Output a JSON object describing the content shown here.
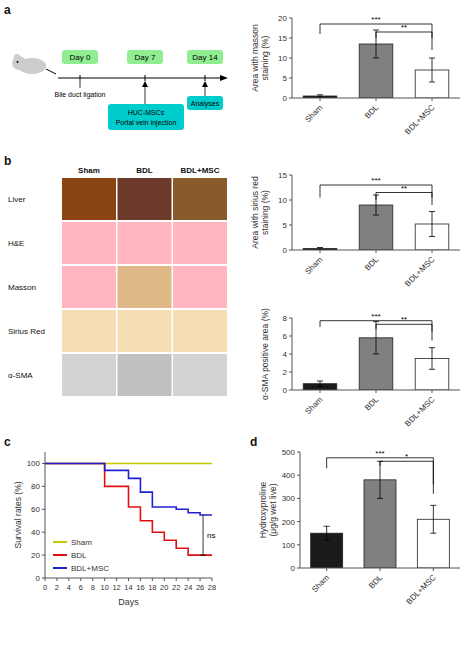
{
  "chart_data": [
    {
      "type": "timeline",
      "title": "a",
      "labels": [
        "Day 0",
        "Day 7",
        "Day 14"
      ],
      "annotations": [
        "Bile duct ligation",
        "HUC-MSCs\nPortal vein injection",
        "Analyses"
      ]
    },
    {
      "type": "bar",
      "categories": [
        "Sham",
        "BDL",
        "BDL+MSC"
      ],
      "values": [
        0.5,
        13.5,
        7.0
      ],
      "errors": [
        0.3,
        3.5,
        3.0
      ],
      "colors": [
        "#1a1a1a",
        "#808080",
        "#ffffff"
      ],
      "ylim": [
        0,
        20
      ],
      "yticks": [
        0,
        5,
        10,
        15,
        20
      ],
      "ylabel": "Area with masson\nstaining (%)",
      "annotations": [
        {
          "text": "***",
          "between": [
            "Sham",
            "BDL+MSC"
          ],
          "y": [
            16,
            18.5,
            15
          ]
        },
        {
          "text": "**",
          "between": [
            "BDL",
            "BDL+MSC"
          ],
          "y": [
            15,
            16.5,
            12
          ]
        }
      ]
    },
    {
      "type": "mosaic",
      "title": "b",
      "row_labels": [
        "Liver",
        "H&E",
        "Masson",
        "Sirius Red",
        "α-SMA"
      ],
      "col_labels": [
        "Sham",
        "BDL",
        "BDL+MSC"
      ],
      "cells": [
        [
          "#8B4513",
          "#6B3A2A",
          "#8B5A2B"
        ],
        [
          "#FFB6C1",
          "#FFB6C1",
          "#FFB6C1"
        ],
        [
          "#FFB6C1",
          "#DEB887",
          "#FFB6C1"
        ],
        [
          "#F5DEB3",
          "#F5DEB3",
          "#F5DEB3"
        ],
        [
          "#D3D3D3",
          "#C0C0C0",
          "#D3D3D3"
        ]
      ]
    },
    {
      "type": "bar",
      "categories": [
        "Sham",
        "BDL",
        "BDL+MSC"
      ],
      "values": [
        0.3,
        9.0,
        5.2
      ],
      "errors": [
        0.2,
        2.0,
        2.5
      ],
      "colors": [
        "#1a1a1a",
        "#808080",
        "#ffffff"
      ],
      "ylim": [
        0,
        15
      ],
      "yticks": [
        0,
        5,
        10,
        15
      ],
      "ylabel": "Area with sirius red\nstaining (%)",
      "annotations": [
        {
          "text": "***",
          "between": [
            "Sham",
            "BDL+MSC"
          ],
          "y": [
            10.5,
            13.0,
            10.5
          ]
        },
        {
          "text": "**",
          "between": [
            "BDL",
            "BDL+MSC"
          ],
          "y": [
            10.0,
            11.5,
            9.0
          ]
        }
      ]
    },
    {
      "type": "bar",
      "categories": [
        "Sham",
        "BDL",
        "BDL+MSC"
      ],
      "values": [
        0.7,
        5.8,
        3.5
      ],
      "errors": [
        0.3,
        1.8,
        1.2
      ],
      "colors": [
        "#1a1a1a",
        "#808080",
        "#ffffff"
      ],
      "ylim": [
        0,
        8
      ],
      "yticks": [
        0,
        2,
        4,
        6,
        8
      ],
      "ylabel": "α-SMA positive area (%)",
      "annotations": [
        {
          "text": "***",
          "between": [
            "Sham",
            "BDL+MSC"
          ],
          "y": [
            7.0,
            7.7,
            6.5
          ]
        },
        {
          "text": "**",
          "between": [
            "BDL",
            "BDL+MSC"
          ],
          "y": [
            6.8,
            7.3,
            5.5
          ]
        }
      ]
    },
    {
      "type": "line",
      "title": "c",
      "xlabel": "Days",
      "ylabel": "Survival rates (%)",
      "xlim": [
        0,
        28
      ],
      "ylim": [
        0,
        110
      ],
      "xticks": [
        0,
        2,
        4,
        6,
        8,
        10,
        12,
        14,
        16,
        18,
        20,
        22,
        24,
        26,
        28
      ],
      "yticks": [
        0,
        20,
        40,
        60,
        80,
        100
      ],
      "legend": "lower left",
      "series": [
        {
          "name": "Sham",
          "color": "#c8c800",
          "x": [
            0,
            28
          ],
          "values": [
            100,
            100
          ]
        },
        {
          "name": "BDL",
          "color": "#e01010",
          "x": [
            0,
            10,
            10,
            14,
            14,
            16,
            16,
            18,
            18,
            20,
            20,
            22,
            22,
            24,
            24,
            28
          ],
          "values": [
            100,
            100,
            80,
            80,
            62,
            62,
            50,
            50,
            40,
            40,
            33,
            33,
            26,
            26,
            20,
            20
          ]
        },
        {
          "name": "BDL+MSC",
          "color": "#2020d0",
          "x": [
            0,
            10,
            10,
            14,
            14,
            16,
            16,
            18,
            18,
            22,
            22,
            24,
            24,
            26,
            26,
            28
          ],
          "values": [
            100,
            100,
            94,
            94,
            87,
            87,
            75,
            75,
            62,
            62,
            60,
            60,
            57,
            57,
            55,
            55
          ]
        }
      ],
      "annotations": [
        {
          "text": "ns",
          "x": 26.5,
          "y": [
            20,
            55
          ]
        }
      ]
    },
    {
      "type": "bar",
      "title": "d",
      "categories": [
        "Sham",
        "BDL",
        "BDL+MSC"
      ],
      "values": [
        150,
        380,
        210
      ],
      "errors": [
        30,
        80,
        60
      ],
      "colors": [
        "#1a1a1a",
        "#808080",
        "#ffffff"
      ],
      "ylim": [
        0,
        500
      ],
      "yticks": [
        0,
        100,
        200,
        300,
        400,
        500
      ],
      "ylabel": "Hydroxyproline\n(μg/g wet live)",
      "annotations": [
        {
          "text": "***",
          "between": [
            "Sham",
            "BDL+MSC"
          ],
          "y": [
            430,
            475,
            360
          ]
        },
        {
          "text": "*",
          "between": [
            "BDL",
            "BDL+MSC"
          ],
          "y": [
            440,
            460,
            320
          ]
        }
      ]
    }
  ]
}
